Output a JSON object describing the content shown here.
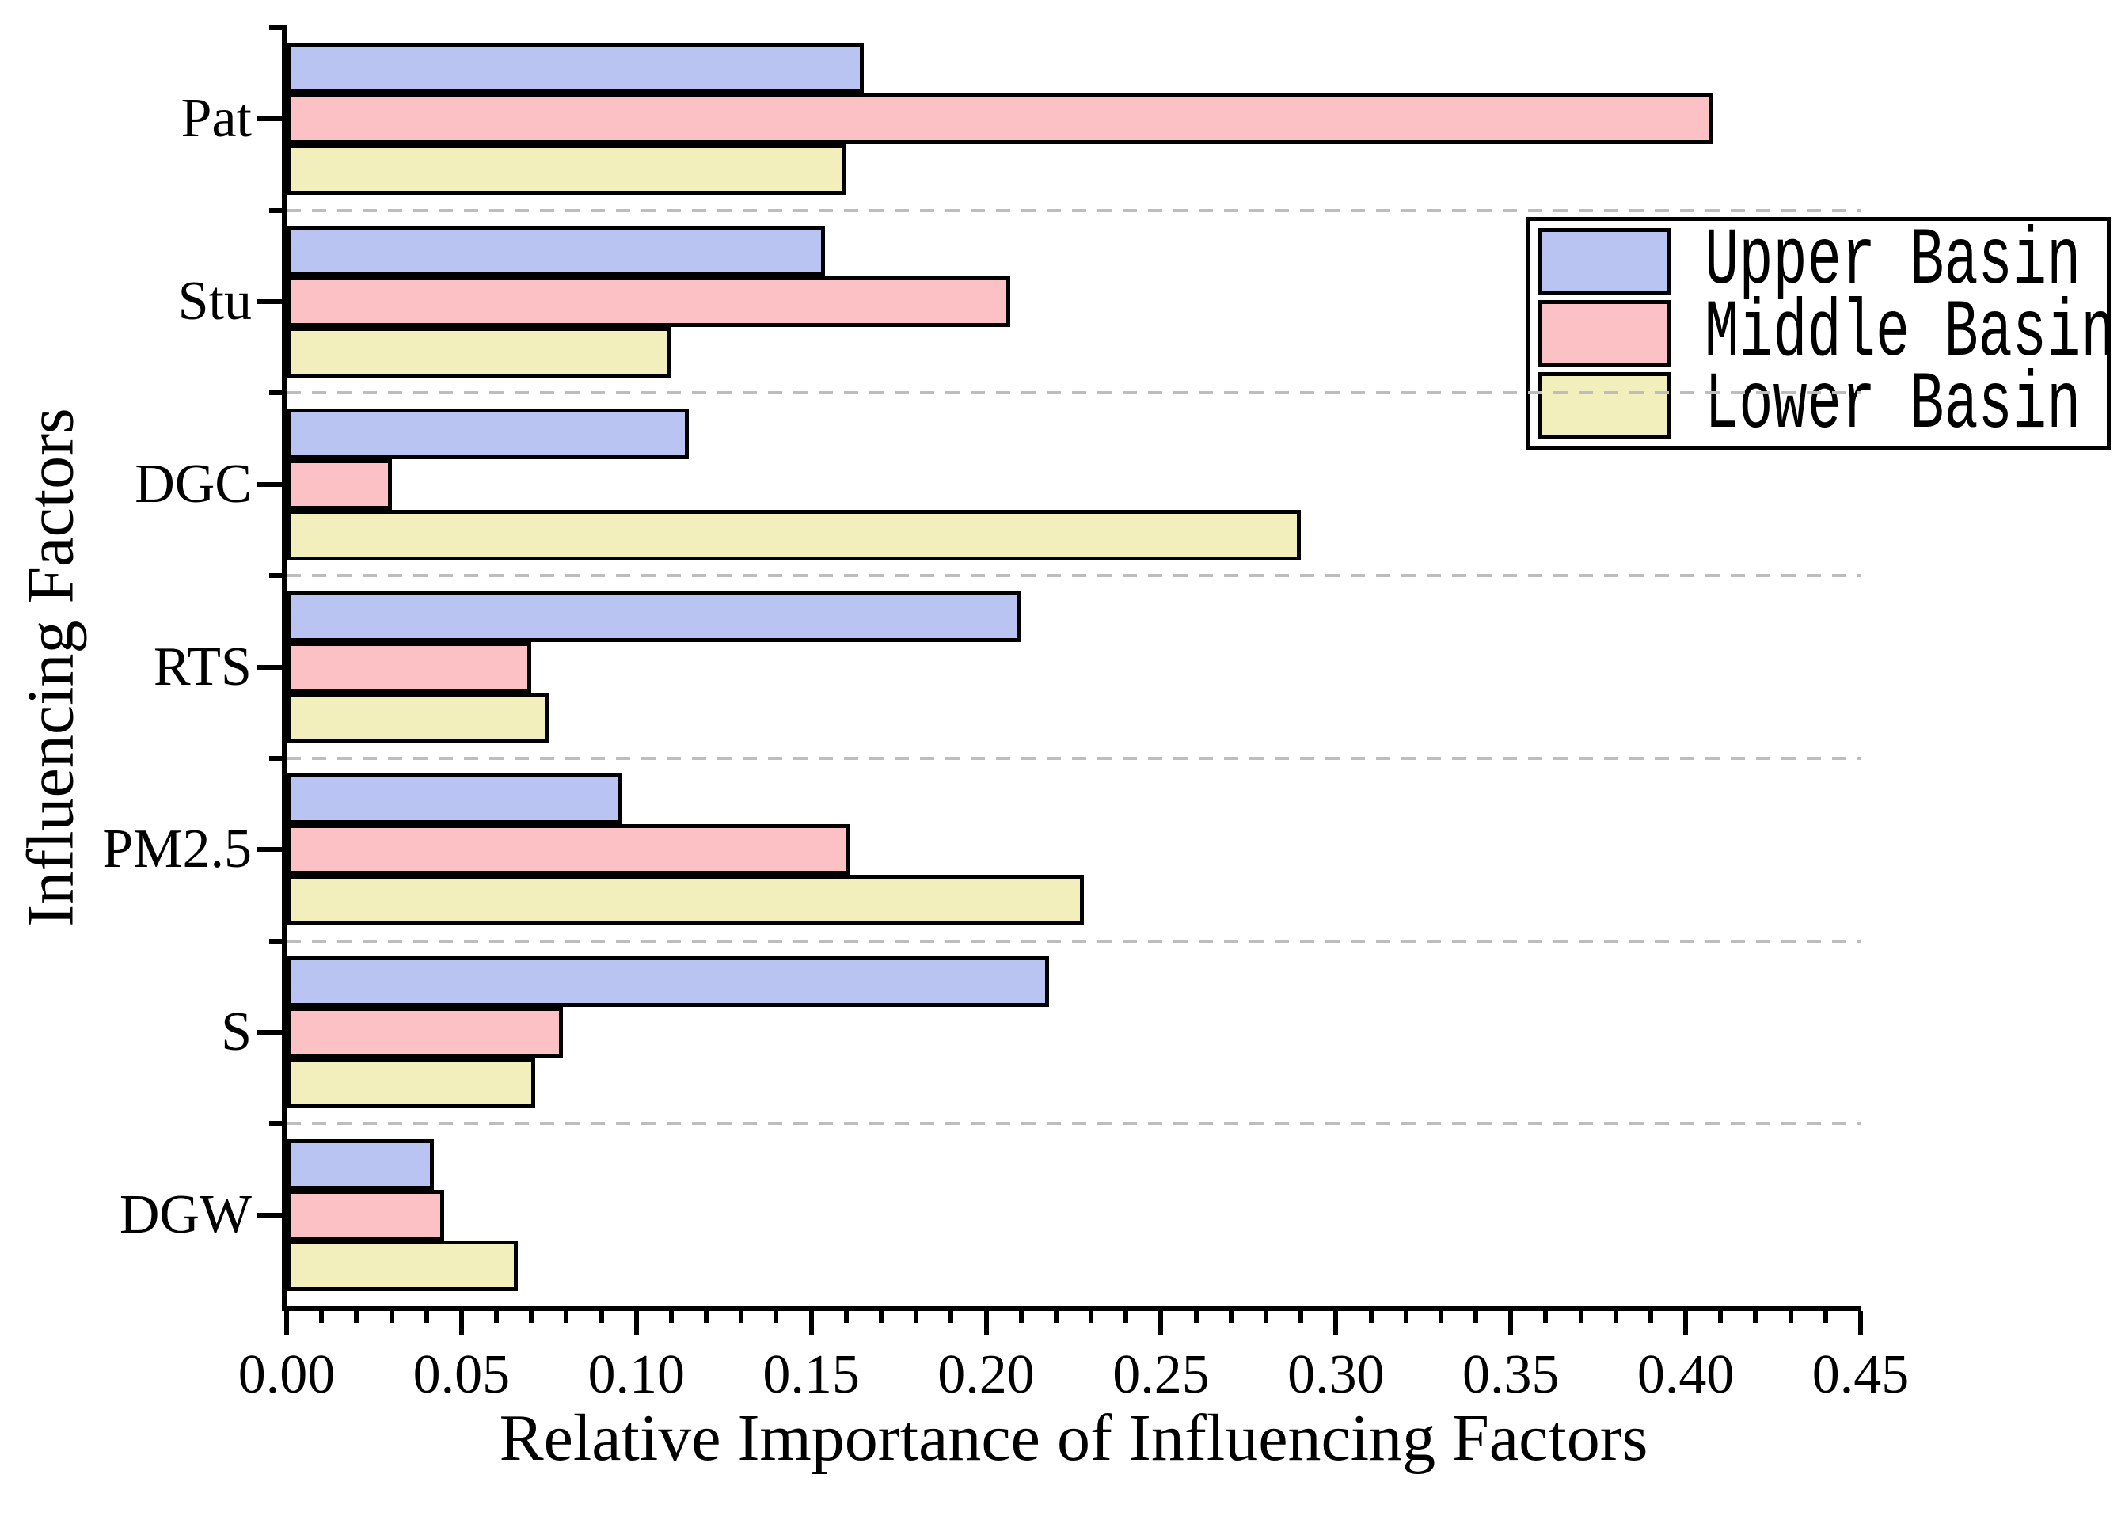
{
  "chart_data": {
    "type": "bar",
    "orientation": "horizontal",
    "xlabel": "Relative Importance of Influencing Factors",
    "ylabel": "Influencing Factors",
    "categories": [
      "Pat",
      "Stu",
      "DGC",
      "RTS",
      "PM2.5",
      "S",
      "DGW"
    ],
    "series": [
      {
        "name": "Upper Basin",
        "color": "#b9c4f2",
        "values": [
          0.165,
          0.154,
          0.115,
          0.21,
          0.096,
          0.218,
          0.042
        ]
      },
      {
        "name": "Middle Basin",
        "color": "#fcc1c4",
        "values": [
          0.408,
          0.207,
          0.03,
          0.07,
          0.161,
          0.079,
          0.045
        ]
      },
      {
        "name": "Lower Basin",
        "color": "#f2efbd",
        "values": [
          0.16,
          0.11,
          0.29,
          0.075,
          0.228,
          0.071,
          0.066
        ]
      }
    ],
    "xlim": [
      0,
      0.45
    ],
    "x_major_step": 0.05,
    "x_minor_step": 0.01,
    "x_tick_labels": [
      "0.00",
      "0.05",
      "0.10",
      "0.15",
      "0.20",
      "0.25",
      "0.30",
      "0.35",
      "0.40",
      "0.45"
    ],
    "grid": "horizontal dashed lines between category groups",
    "legend_position": "upper right"
  },
  "styles": {
    "bar_edge_color": "#000000",
    "grid_color": "#bdbdbd",
    "axis_color": "#000000",
    "background": "#ffffff",
    "text_color": "#000000"
  }
}
